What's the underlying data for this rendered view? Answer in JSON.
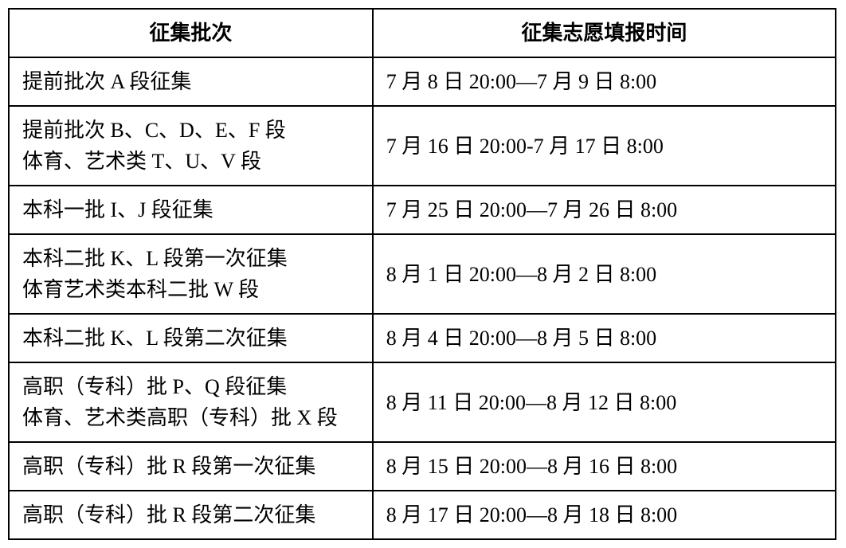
{
  "table": {
    "type": "table",
    "background_color": "#ffffff",
    "border_color": "#000000",
    "border_width": 2,
    "font_family": "SimSun",
    "header_fontsize": 26,
    "cell_fontsize": 26,
    "column_widths": [
      "44%",
      "56%"
    ],
    "columns": [
      "征集批次",
      "征集志愿填报时间"
    ],
    "rows": [
      {
        "batch": "提前批次 A 段征集",
        "time": "7 月 8 日 20:00—7 月 9 日 8:00",
        "multiline": false
      },
      {
        "batch": "提前批次 B、C、D、E、F 段\n体育、艺术类 T、U、V 段",
        "time": "7 月 16 日 20:00-7 月 17 日 8:00",
        "multiline": true
      },
      {
        "batch": "本科一批 I、J 段征集",
        "time": "7 月 25 日 20:00—7 月 26 日 8:00",
        "multiline": false
      },
      {
        "batch": "本科二批 K、L 段第一次征集\n体育艺术类本科二批 W 段",
        "time": "8 月 1 日 20:00—8 月 2 日 8:00",
        "multiline": true
      },
      {
        "batch": "本科二批 K、L 段第二次征集",
        "time": "8 月 4 日 20:00—8 月 5 日 8:00",
        "multiline": false
      },
      {
        "batch": "高职（专科）批 P、Q 段征集\n体育、艺术类高职（专科）批 X 段",
        "time": "8 月 11 日 20:00—8 月 12 日 8:00",
        "multiline": true
      },
      {
        "batch": "高职（专科）批 R 段第一次征集",
        "time": "8 月 15 日 20:00—8 月 16 日 8:00",
        "multiline": false
      },
      {
        "batch": "高职（专科）批 R 段第二次征集",
        "time": "8 月 17 日 20:00—8 月 18 日 8:00",
        "multiline": false
      }
    ]
  }
}
